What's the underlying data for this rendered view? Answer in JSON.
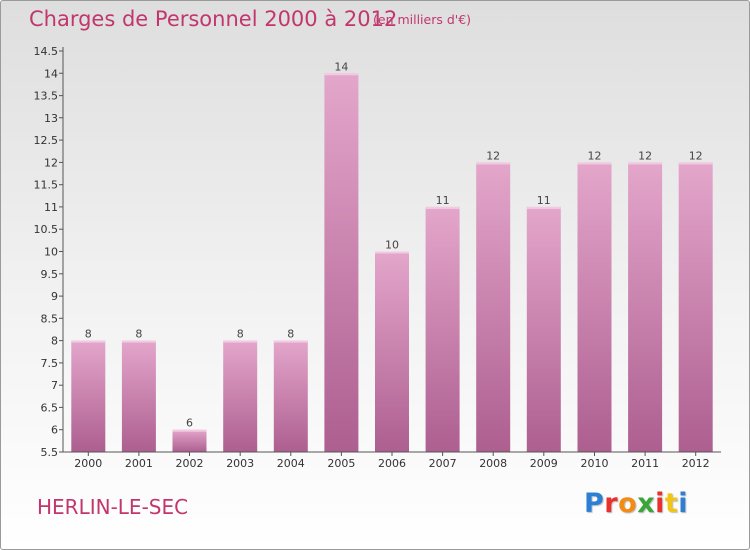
{
  "header": {
    "title": "Charges de Personnel 2000 à 2012",
    "subtitle": "(en milliers d'€)"
  },
  "footer": {
    "commune": "HERLIN-LE-SEC",
    "logo_letters": [
      "P",
      "r",
      "o",
      "x",
      "i",
      "t",
      "i"
    ]
  },
  "colors": {
    "accent": "#c2366e",
    "bar_top": "#e4a6cb",
    "bar_bottom": "#ad5f90"
  },
  "chart_data": {
    "type": "bar",
    "title": "Charges de Personnel 2000 à 2012",
    "subtitle": "(en milliers d'€)",
    "categories": [
      "2000",
      "2001",
      "2002",
      "2003",
      "2004",
      "2005",
      "2006",
      "2007",
      "2008",
      "2009",
      "2010",
      "2011",
      "2012"
    ],
    "values": [
      8,
      8,
      6,
      8,
      8,
      14,
      10,
      11,
      12,
      11,
      12,
      12,
      12
    ],
    "data_labels": [
      "8",
      "8",
      "6",
      "8",
      "8",
      "14",
      "10",
      "11",
      "12",
      "11",
      "12",
      "12",
      "12"
    ],
    "ylim": [
      5.5,
      14.5
    ],
    "yticks": [
      "5.5",
      "6",
      "6.5",
      "7",
      "7.5",
      "8",
      "8.5",
      "9",
      "9.5",
      "10",
      "10.5",
      "11",
      "11.5",
      "12",
      "12.5",
      "13",
      "13.5",
      "14",
      "14.5"
    ],
    "grid": false,
    "xlabel": "",
    "ylabel": ""
  }
}
